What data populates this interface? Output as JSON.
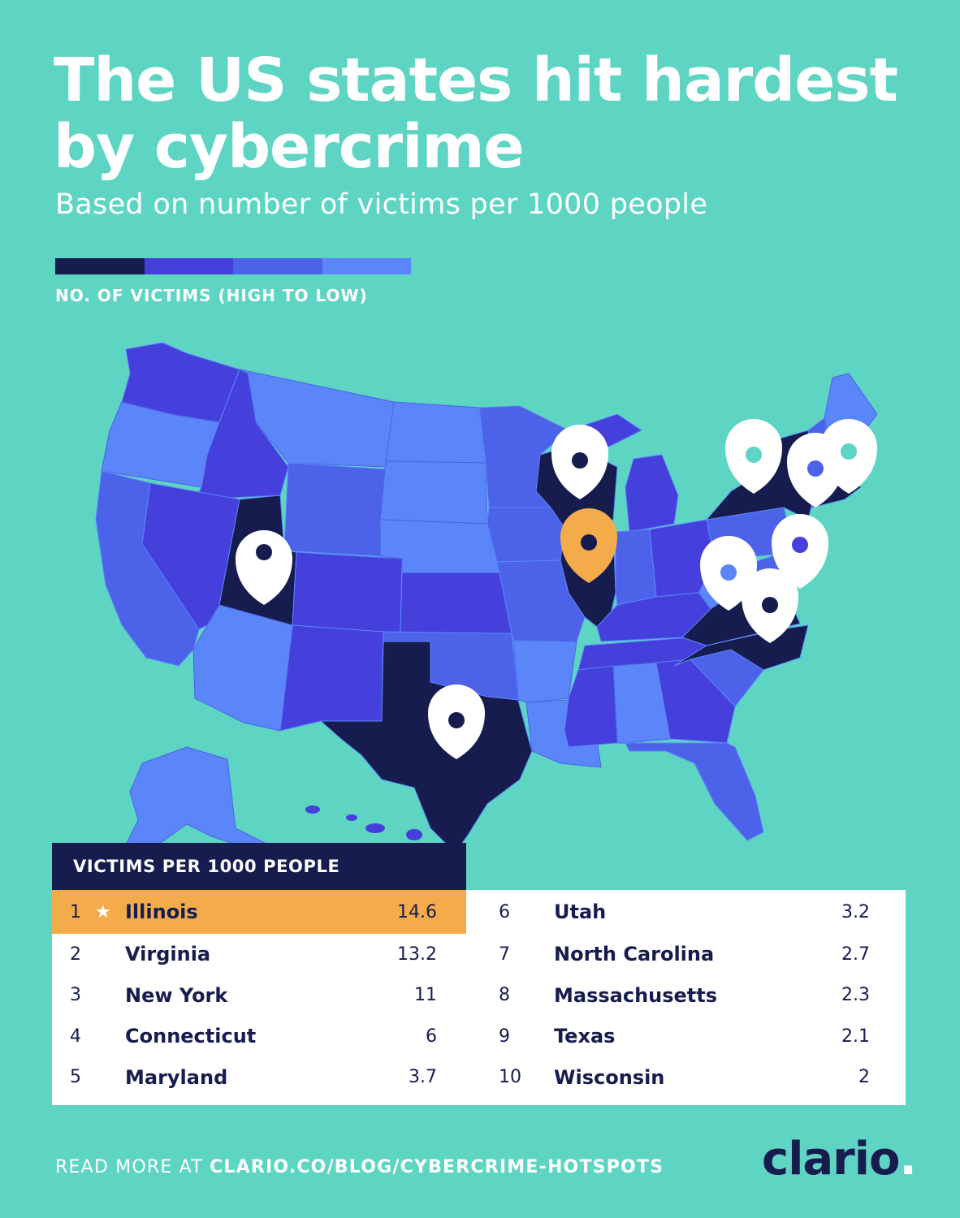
{
  "title": "The US states hit hardest by cybercrime",
  "subtitle": "Based on number of victims per 1000 people",
  "legend": {
    "label": "NO. OF VICTIMS (HIGH TO LOW)",
    "colors": [
      "#171c4f",
      "#4540dc",
      "#4c62e8",
      "#5a86fa"
    ]
  },
  "colors": {
    "background": "#5ed5c3",
    "highlight": "#f4ac4b",
    "navy": "#171c4f"
  },
  "table": {
    "header": "VICTIMS PER 1000 PEOPLE",
    "rows": [
      {
        "rank": "1",
        "state": "Illinois",
        "value": "14.6",
        "star": "★"
      },
      {
        "rank": "2",
        "state": "Virginia",
        "value": "13.2"
      },
      {
        "rank": "3",
        "state": "New York",
        "value": "11"
      },
      {
        "rank": "4",
        "state": "Connecticut",
        "value": "6"
      },
      {
        "rank": "5",
        "state": "Maryland",
        "value": "3.7"
      },
      {
        "rank": "6",
        "state": "Utah",
        "value": "3.2"
      },
      {
        "rank": "7",
        "state": "North Carolina",
        "value": "2.7"
      },
      {
        "rank": "8",
        "state": "Massachusetts",
        "value": "2.3"
      },
      {
        "rank": "9",
        "state": "Texas",
        "value": "2.1"
      },
      {
        "rank": "10",
        "state": "Wisconsin",
        "value": "2"
      }
    ]
  },
  "footer": {
    "prefix": "READ MORE AT ",
    "link": "CLARIO.CO/BLOG/CYBERCRIME-HOTSPOTS"
  },
  "logo": {
    "text": "clario",
    "dot": "."
  }
}
